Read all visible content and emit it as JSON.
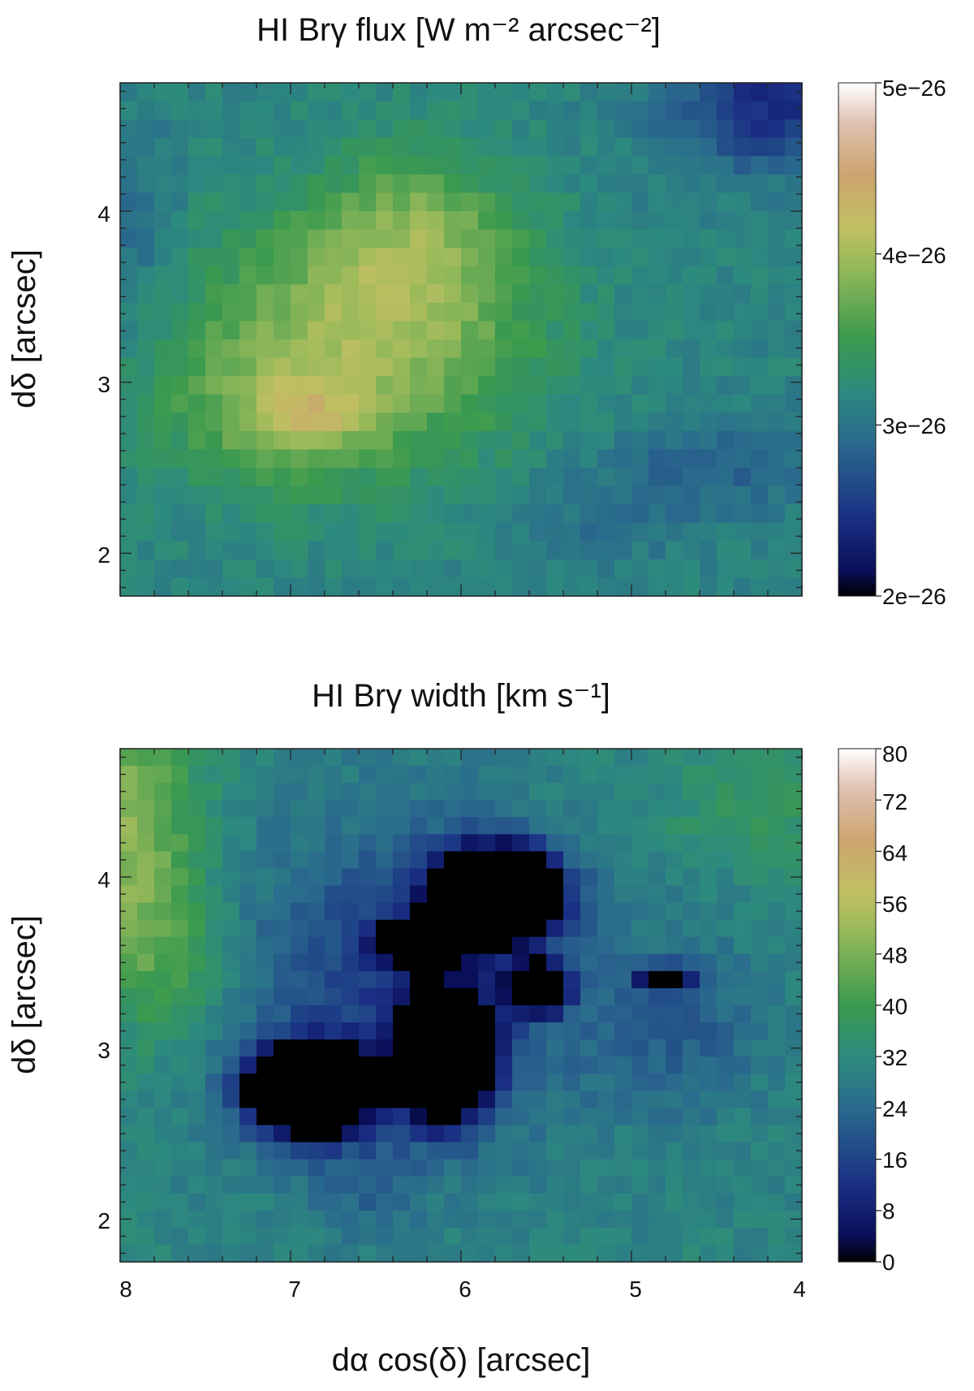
{
  "chart_data": [
    {
      "type": "heatmap",
      "title": "HI Brγ flux [W m⁻² arcsec⁻²]",
      "xlabel": "",
      "ylabel": "dδ [arcsec]",
      "xlim": [
        8.0,
        4.0
      ],
      "ylim": [
        1.75,
        4.75
      ],
      "x_ticks": [
        "8",
        "7",
        "6",
        "5",
        "4"
      ],
      "y_ticks": [
        "2",
        "3",
        "4"
      ],
      "x_tick_labels_shown": false,
      "colorbar": {
        "min": 2e-26,
        "max": 5e-26,
        "tick_labels": [
          "2e−26",
          "3e−26",
          "4e−26",
          "5e−26"
        ]
      },
      "grid": {
        "nx": 40,
        "ny": 28
      },
      "features": [
        {
          "x": 6.9,
          "y": 2.8,
          "value": 5e-26
        },
        {
          "x": 6.2,
          "y": 3.8,
          "value": 4.2e-26
        },
        {
          "x": 6.5,
          "y": 3.1,
          "value": 4.4e-26
        },
        {
          "x": 4.2,
          "y": 4.6,
          "value": 2.1e-26
        },
        {
          "x": 4.6,
          "y": 2.6,
          "value": 2.6e-26
        },
        {
          "x": 7.9,
          "y": 3.9,
          "value": 2.6e-26
        }
      ]
    },
    {
      "type": "heatmap",
      "title": "HI Brγ width [km s⁻¹]",
      "xlabel": "dα cos(δ) [arcsec]",
      "ylabel": "dδ [arcsec]",
      "xlim": [
        8.0,
        4.0
      ],
      "ylim": [
        1.75,
        4.75
      ],
      "x_ticks": [
        "8",
        "7",
        "6",
        "5",
        "4"
      ],
      "y_ticks": [
        "2",
        "3",
        "4"
      ],
      "x_tick_labels_shown": true,
      "colorbar": {
        "min": 0,
        "max": 80,
        "tick_labels": [
          "0",
          "8",
          "16",
          "24",
          "32",
          "40",
          "48",
          "56",
          "64",
          "72",
          "80"
        ]
      },
      "grid": {
        "nx": 40,
        "ny": 30
      },
      "features": [
        {
          "x": 7.95,
          "y": 4.3,
          "value": 56
        },
        {
          "x": 6.9,
          "y": 2.75,
          "value": 0
        },
        {
          "x": 6.1,
          "y": 2.95,
          "value": 0
        },
        {
          "x": 5.8,
          "y": 3.9,
          "value": 0
        },
        {
          "x": 5.55,
          "y": 3.35,
          "value": 0
        },
        {
          "x": 4.8,
          "y": 3.4,
          "value": 4
        },
        {
          "x": 4.3,
          "y": 4.3,
          "value": 36
        }
      ]
    }
  ]
}
